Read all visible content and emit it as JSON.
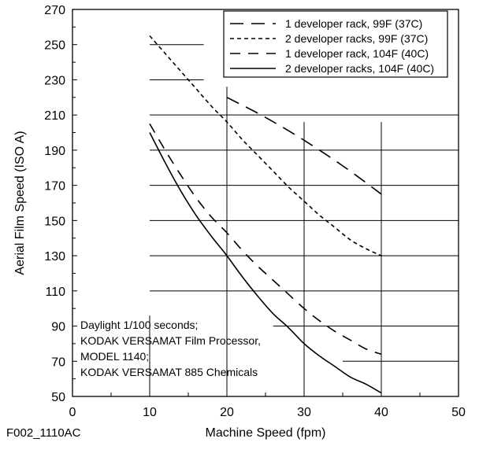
{
  "chart_data": {
    "type": "line",
    "xlabel": "Machine Speed (fpm)",
    "ylabel": "Aerial Film Speed (ISO A)",
    "xlim": [
      0,
      50
    ],
    "ylim": [
      50,
      270
    ],
    "x_ticks": [
      0,
      10,
      20,
      30,
      40,
      50
    ],
    "y_ticks": [
      50,
      70,
      90,
      110,
      130,
      150,
      170,
      190,
      210,
      230,
      250,
      270
    ],
    "figure_id": "F002_1110AC",
    "legend_position": "top-right",
    "annotation": [
      "Daylight 1/100 seconds;",
      "KODAK VERSAMAT Film Processor,",
      "MODEL 1140;",
      "KODAK VERSAMAT 885 Chemicals"
    ],
    "series": [
      {
        "name": "1 developer rack, 99F (37C)",
        "style": "long-dash",
        "x": [
          20,
          24,
          28,
          32,
          36,
          40
        ],
        "y": [
          220,
          211,
          201,
          190,
          178,
          165
        ]
      },
      {
        "name": "2 developer racks, 99F (37C)",
        "style": "short-dash",
        "x": [
          10,
          12,
          14,
          16,
          18,
          20,
          22,
          24,
          26,
          28,
          30,
          32,
          34,
          36,
          38,
          40
        ],
        "y": [
          255,
          245,
          235,
          225,
          215,
          206,
          196,
          187,
          178,
          169,
          161,
          153,
          146,
          139,
          134,
          130
        ]
      },
      {
        "name": "1 developer rack, 104F (40C)",
        "style": "medium-dash",
        "x": [
          10,
          12,
          14,
          16,
          18,
          20,
          22,
          24,
          26,
          28,
          30,
          32,
          34,
          36,
          38,
          40
        ],
        "y": [
          205,
          190,
          176,
          163,
          152,
          143,
          133,
          124,
          116,
          108,
          100,
          93,
          87,
          82,
          77,
          74
        ]
      },
      {
        "name": "2 developer racks, 104F (40C)",
        "style": "solid",
        "x": [
          10,
          12,
          14,
          16,
          18,
          20,
          22,
          24,
          26,
          28,
          30,
          32,
          34,
          36,
          38,
          40
        ],
        "y": [
          200,
          183,
          167,
          153,
          141,
          130,
          118,
          107,
          97,
          89,
          80,
          73,
          67,
          61,
          57,
          52
        ]
      }
    ]
  }
}
